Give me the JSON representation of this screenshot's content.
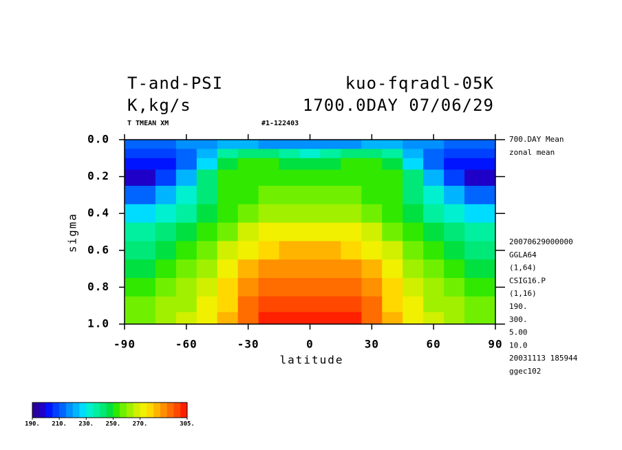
{
  "chart_data": {
    "type": "contourf",
    "title": "T-and-PSI",
    "title_right": "kuo-fqradl-05K",
    "subtitle": "K,kg/s",
    "subtitle_right": "1700.0DAY 07/06/29",
    "label_left": "T TMEAN XM",
    "label_center": "#1-122403",
    "x_label": "latitude",
    "y_label": "sigma",
    "annotations_top": [
      "700.DAY Mean",
      "zonal mean"
    ],
    "annotations": [
      "20070629000000",
      "GGLA64",
      "(1,64)",
      "CSIG16.P",
      "(1,16)",
      "190.",
      "300.",
      "5.00",
      "10.0",
      "20031113 185944",
      "ggec102"
    ],
    "xlim": [
      -90,
      90
    ],
    "xticks": [
      -90,
      -60,
      -30,
      0,
      30,
      60,
      90
    ],
    "ylim": [
      0,
      1
    ],
    "y_inverted": true,
    "yticks": [
      {
        "value": 0,
        "label": "0.0"
      },
      0.2,
      0.4,
      0.6,
      0.8,
      {
        "value": 1,
        "label": "1.0"
      }
    ],
    "x": [
      -90,
      -80,
      -70,
      -60,
      -50,
      -40,
      -30,
      -20,
      -10,
      0,
      10,
      20,
      30,
      40,
      50,
      60,
      70,
      80,
      90
    ],
    "y": [
      0.025,
      0.075,
      0.125,
      0.2,
      0.3,
      0.4,
      0.5,
      0.6,
      0.7,
      0.8,
      0.9,
      0.97
    ],
    "values": [
      [
        210,
        210,
        212,
        215,
        218,
        220,
        220,
        218,
        216,
        215,
        216,
        218,
        220,
        220,
        218,
        215,
        212,
        210,
        210
      ],
      [
        205,
        205,
        207,
        212,
        222,
        238,
        243,
        240,
        235,
        232,
        235,
        240,
        243,
        238,
        222,
        212,
        207,
        205,
        205
      ],
      [
        200,
        200,
        203,
        210,
        228,
        245,
        250,
        250,
        248,
        247,
        248,
        250,
        250,
        245,
        228,
        210,
        203,
        200,
        200
      ],
      [
        198,
        198,
        205,
        222,
        240,
        250,
        252,
        253,
        253,
        253,
        253,
        253,
        252,
        250,
        240,
        222,
        205,
        198,
        198
      ],
      [
        210,
        212,
        220,
        232,
        242,
        250,
        253,
        255,
        256,
        257,
        256,
        255,
        253,
        250,
        242,
        232,
        220,
        212,
        210
      ],
      [
        225,
        226,
        230,
        237,
        245,
        252,
        257,
        261,
        263,
        264,
        263,
        261,
        257,
        252,
        245,
        237,
        230,
        226,
        225
      ],
      [
        235,
        236,
        240,
        245,
        251,
        258,
        265,
        270,
        272,
        273,
        272,
        270,
        265,
        258,
        251,
        245,
        240,
        236,
        235
      ],
      [
        243,
        244,
        247,
        251,
        257,
        265,
        273,
        279,
        282,
        283,
        282,
        279,
        273,
        265,
        257,
        251,
        247,
        244,
        243
      ],
      [
        248,
        249,
        252,
        256,
        262,
        270,
        280,
        287,
        289,
        289,
        289,
        287,
        280,
        270,
        262,
        256,
        252,
        249,
        248
      ],
      [
        252,
        253,
        256,
        260,
        266,
        275,
        285,
        292,
        292,
        291,
        292,
        292,
        285,
        275,
        266,
        260,
        256,
        253,
        252
      ],
      [
        256,
        257,
        260,
        264,
        270,
        279,
        290,
        297,
        299,
        299,
        299,
        297,
        290,
        279,
        270,
        264,
        260,
        257,
        256
      ],
      [
        258,
        259,
        262,
        266,
        273,
        282,
        293,
        300,
        302,
        302,
        302,
        300,
        293,
        282,
        273,
        266,
        262,
        259,
        258
      ]
    ],
    "levels": [
      190,
      195,
      200,
      205,
      210,
      215,
      220,
      225,
      230,
      235,
      240,
      245,
      250,
      255,
      260,
      265,
      270,
      275,
      280,
      285,
      290,
      295,
      300,
      305
    ],
    "colors": [
      "#2800a0",
      "#1e00c8",
      "#0014ff",
      "#0040ff",
      "#0064ff",
      "#0090ff",
      "#00b4ff",
      "#00dcff",
      "#00f0d0",
      "#00f0a0",
      "#00e878",
      "#00e040",
      "#30e800",
      "#70f000",
      "#a0f000",
      "#d0f000",
      "#f0f000",
      "#ffd800",
      "#ffb400",
      "#ff9000",
      "#ff6c00",
      "#ff4800",
      "#ff2000"
    ],
    "colorbar_ticks": [
      {
        "value": 190,
        "label": "190."
      },
      {
        "value": 210,
        "label": "210."
      },
      {
        "value": 230,
        "label": "230."
      },
      {
        "value": 250,
        "label": "250."
      },
      {
        "value": 270,
        "label": "270."
      },
      {
        "value": 305,
        "label": "305."
      }
    ]
  }
}
